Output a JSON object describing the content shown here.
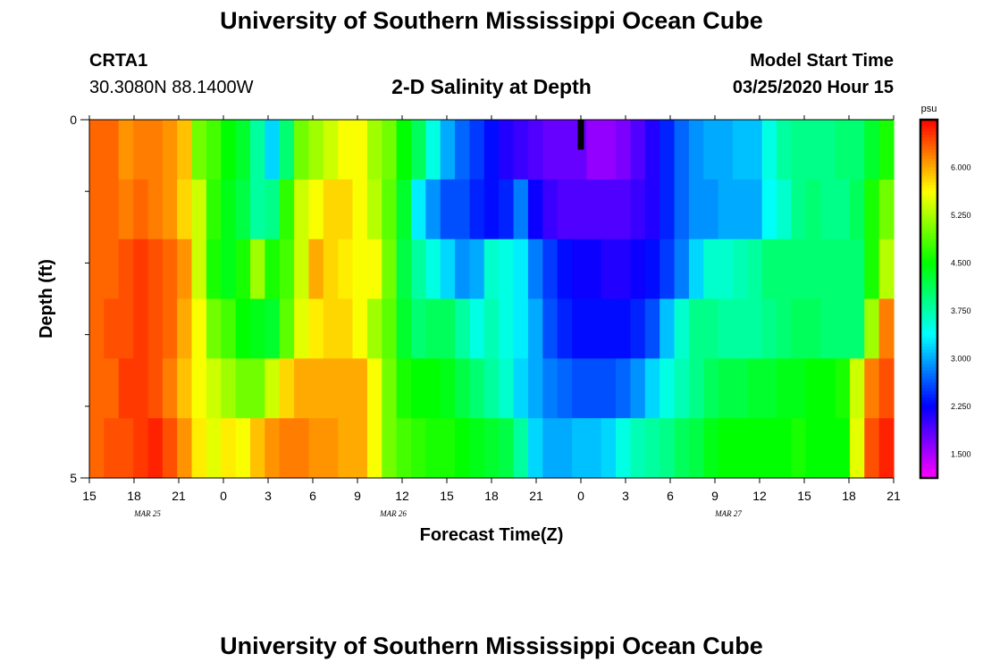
{
  "header": {
    "title": "University of Southern Mississippi Ocean Cube",
    "station_id": "CRTA1",
    "station_coords": "30.3080N 88.1400W",
    "model_start_label": "Model Start Time",
    "model_start_value": "03/25/2020 Hour 15"
  },
  "footer": {
    "title": "University of Southern Mississippi Ocean Cube"
  },
  "chart_data": {
    "type": "heatmap",
    "title": "2-D Salinity at Depth",
    "xlabel": "Forecast Time(Z)",
    "ylabel": "Depth (ft)",
    "x_tick_labels": [
      "15",
      "18",
      "21",
      "0",
      "3",
      "6",
      "9",
      "12",
      "15",
      "18",
      "21",
      "0",
      "3",
      "6",
      "9",
      "12",
      "15",
      "18",
      "21"
    ],
    "date_labels": [
      {
        "label": "MAR 25",
        "tick_index": 1.3
      },
      {
        "label": "MAR 26",
        "tick_index": 6.8
      },
      {
        "label": "MAR 27",
        "tick_index": 14.3
      }
    ],
    "y_tick_labels": [
      "0",
      "5"
    ],
    "ylim": [
      0,
      5
    ],
    "forecast_hours": 54,
    "depth_levels": 5,
    "now_marker_hour": 33,
    "colorbar": {
      "unit": "psu",
      "range": [
        1.125,
        6.75
      ],
      "tick_values": [
        1.5,
        2.25,
        3.0,
        3.75,
        4.5,
        5.25,
        6.0
      ],
      "tick_labels": [
        "1.500",
        "2.250",
        "3.000",
        "3.750",
        "4.500",
        "5.250",
        "6.000"
      ]
    },
    "salinity_psu": [
      [
        6.3,
        6.3,
        6.1,
        6.2,
        6.2,
        6.1,
        5.9,
        5.0,
        4.8,
        4.5,
        4.3,
        3.8,
        3.2,
        4.0,
        5.0,
        5.2,
        5.4,
        5.6,
        5.6,
        5.2,
        5.0,
        4.5,
        4.1,
        3.5,
        3.0,
        2.7,
        2.5,
        2.3,
        2.1,
        2.0,
        1.9,
        1.8,
        1.8,
        1.8,
        1.6,
        1.6,
        1.7,
        1.9,
        2.1,
        2.4,
        2.7,
        2.9,
        3.0,
        3.0,
        3.1,
        3.1,
        3.5,
        3.8,
        3.9,
        3.9,
        3.9,
        4.0,
        4.0,
        4.3,
        4.6
      ],
      [
        6.3,
        6.3,
        6.2,
        6.3,
        6.2,
        6.1,
        5.8,
        5.4,
        4.7,
        4.4,
        4.2,
        3.8,
        3.9,
        4.7,
        5.4,
        5.6,
        5.8,
        5.8,
        5.6,
        5.3,
        4.9,
        4.3,
        3.3,
        2.9,
        2.6,
        2.6,
        2.4,
        2.3,
        2.4,
        2.8,
        2.2,
        2.0,
        1.9,
        1.9,
        1.9,
        1.9,
        1.9,
        2.0,
        2.1,
        2.4,
        2.7,
        2.9,
        2.9,
        3.0,
        3.0,
        3.0,
        3.4,
        3.6,
        3.9,
        4.0,
        3.9,
        3.9,
        4.1,
        4.6,
        5.0
      ],
      [
        6.3,
        6.3,
        6.4,
        6.5,
        6.4,
        6.3,
        6.1,
        5.4,
        4.6,
        4.4,
        4.6,
        5.2,
        4.6,
        4.8,
        5.4,
        6.0,
        5.8,
        5.7,
        5.6,
        5.6,
        5.0,
        4.2,
        3.8,
        3.5,
        3.2,
        2.9,
        3.0,
        3.6,
        3.5,
        3.3,
        2.8,
        2.5,
        2.3,
        2.2,
        2.2,
        2.1,
        2.1,
        2.2,
        2.3,
        2.5,
        2.8,
        3.2,
        3.6,
        3.6,
        3.7,
        3.8,
        4.0,
        4.0,
        4.0,
        4.0,
        4.0,
        4.0,
        4.0,
        4.6,
        5.3
      ],
      [
        6.3,
        6.4,
        6.4,
        6.5,
        6.4,
        6.3,
        6.0,
        5.6,
        5.0,
        4.8,
        4.5,
        4.4,
        4.3,
        4.9,
        5.5,
        5.7,
        5.8,
        5.8,
        5.6,
        5.2,
        4.9,
        4.3,
        4.0,
        4.1,
        4.1,
        3.8,
        3.5,
        3.7,
        3.5,
        3.3,
        3.0,
        2.6,
        2.4,
        2.3,
        2.3,
        2.3,
        2.3,
        2.4,
        2.6,
        3.1,
        3.6,
        3.9,
        3.9,
        3.8,
        3.8,
        3.8,
        3.9,
        4.0,
        4.1,
        4.1,
        4.0,
        4.0,
        4.0,
        5.2,
        6.2
      ],
      [
        6.3,
        6.3,
        6.5,
        6.5,
        6.4,
        6.2,
        5.9,
        5.6,
        5.4,
        5.2,
        5.0,
        5.0,
        5.4,
        5.8,
        6.0,
        6.0,
        6.0,
        6.0,
        6.0,
        5.6,
        5.0,
        4.6,
        4.5,
        4.5,
        4.4,
        4.2,
        4.0,
        3.8,
        3.6,
        3.2,
        3.0,
        2.8,
        2.7,
        2.6,
        2.6,
        2.6,
        2.7,
        2.9,
        3.2,
        3.5,
        3.7,
        3.9,
        4.1,
        4.2,
        4.2,
        4.3,
        4.3,
        4.4,
        4.4,
        4.5,
        4.5,
        4.6,
        5.4,
        6.2,
        6.4
      ],
      [
        6.3,
        6.4,
        6.4,
        6.5,
        6.6,
        6.4,
        6.1,
        5.7,
        5.5,
        5.7,
        5.6,
        5.9,
        6.1,
        6.2,
        6.2,
        6.1,
        6.1,
        6.0,
        6.0,
        5.6,
        5.0,
        4.8,
        4.7,
        4.6,
        4.6,
        4.5,
        4.4,
        4.3,
        4.2,
        3.8,
        3.2,
        3.0,
        3.0,
        3.1,
        3.1,
        3.2,
        3.5,
        3.7,
        3.8,
        3.9,
        4.1,
        4.2,
        4.4,
        4.5,
        4.5,
        4.5,
        4.5,
        4.5,
        4.6,
        4.5,
        4.5,
        4.5,
        5.5,
        6.4,
        6.6
      ]
    ]
  }
}
